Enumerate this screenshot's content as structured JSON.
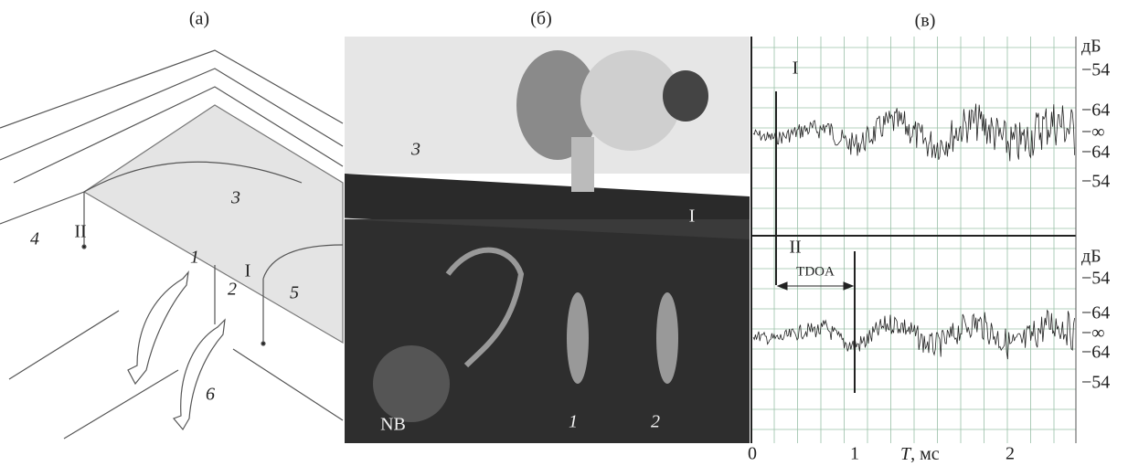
{
  "panels": [
    {
      "label": "(а)",
      "annotations": [
        "II",
        "4",
        "3",
        "1",
        "2",
        "I",
        "5",
        "6"
      ]
    },
    {
      "label": "(б)",
      "annotations": [
        "3",
        "I",
        "NB",
        "1",
        "2"
      ]
    },
    {
      "label": "(в)",
      "traces": [
        {
          "marker": "I",
          "y_labels": [
            "дБ",
            "−54",
            "−64",
            "−∞",
            "−64",
            "−54"
          ]
        },
        {
          "marker": "II",
          "interval": "TDOA",
          "y_labels": [
            "дБ",
            "−54",
            "−64",
            "−∞",
            "−64",
            "−54"
          ]
        }
      ],
      "x_labels": [
        "0",
        "1",
        "2"
      ],
      "x_axis_title": {
        "symbol": "T",
        "unit": ", мс"
      }
    }
  ]
}
